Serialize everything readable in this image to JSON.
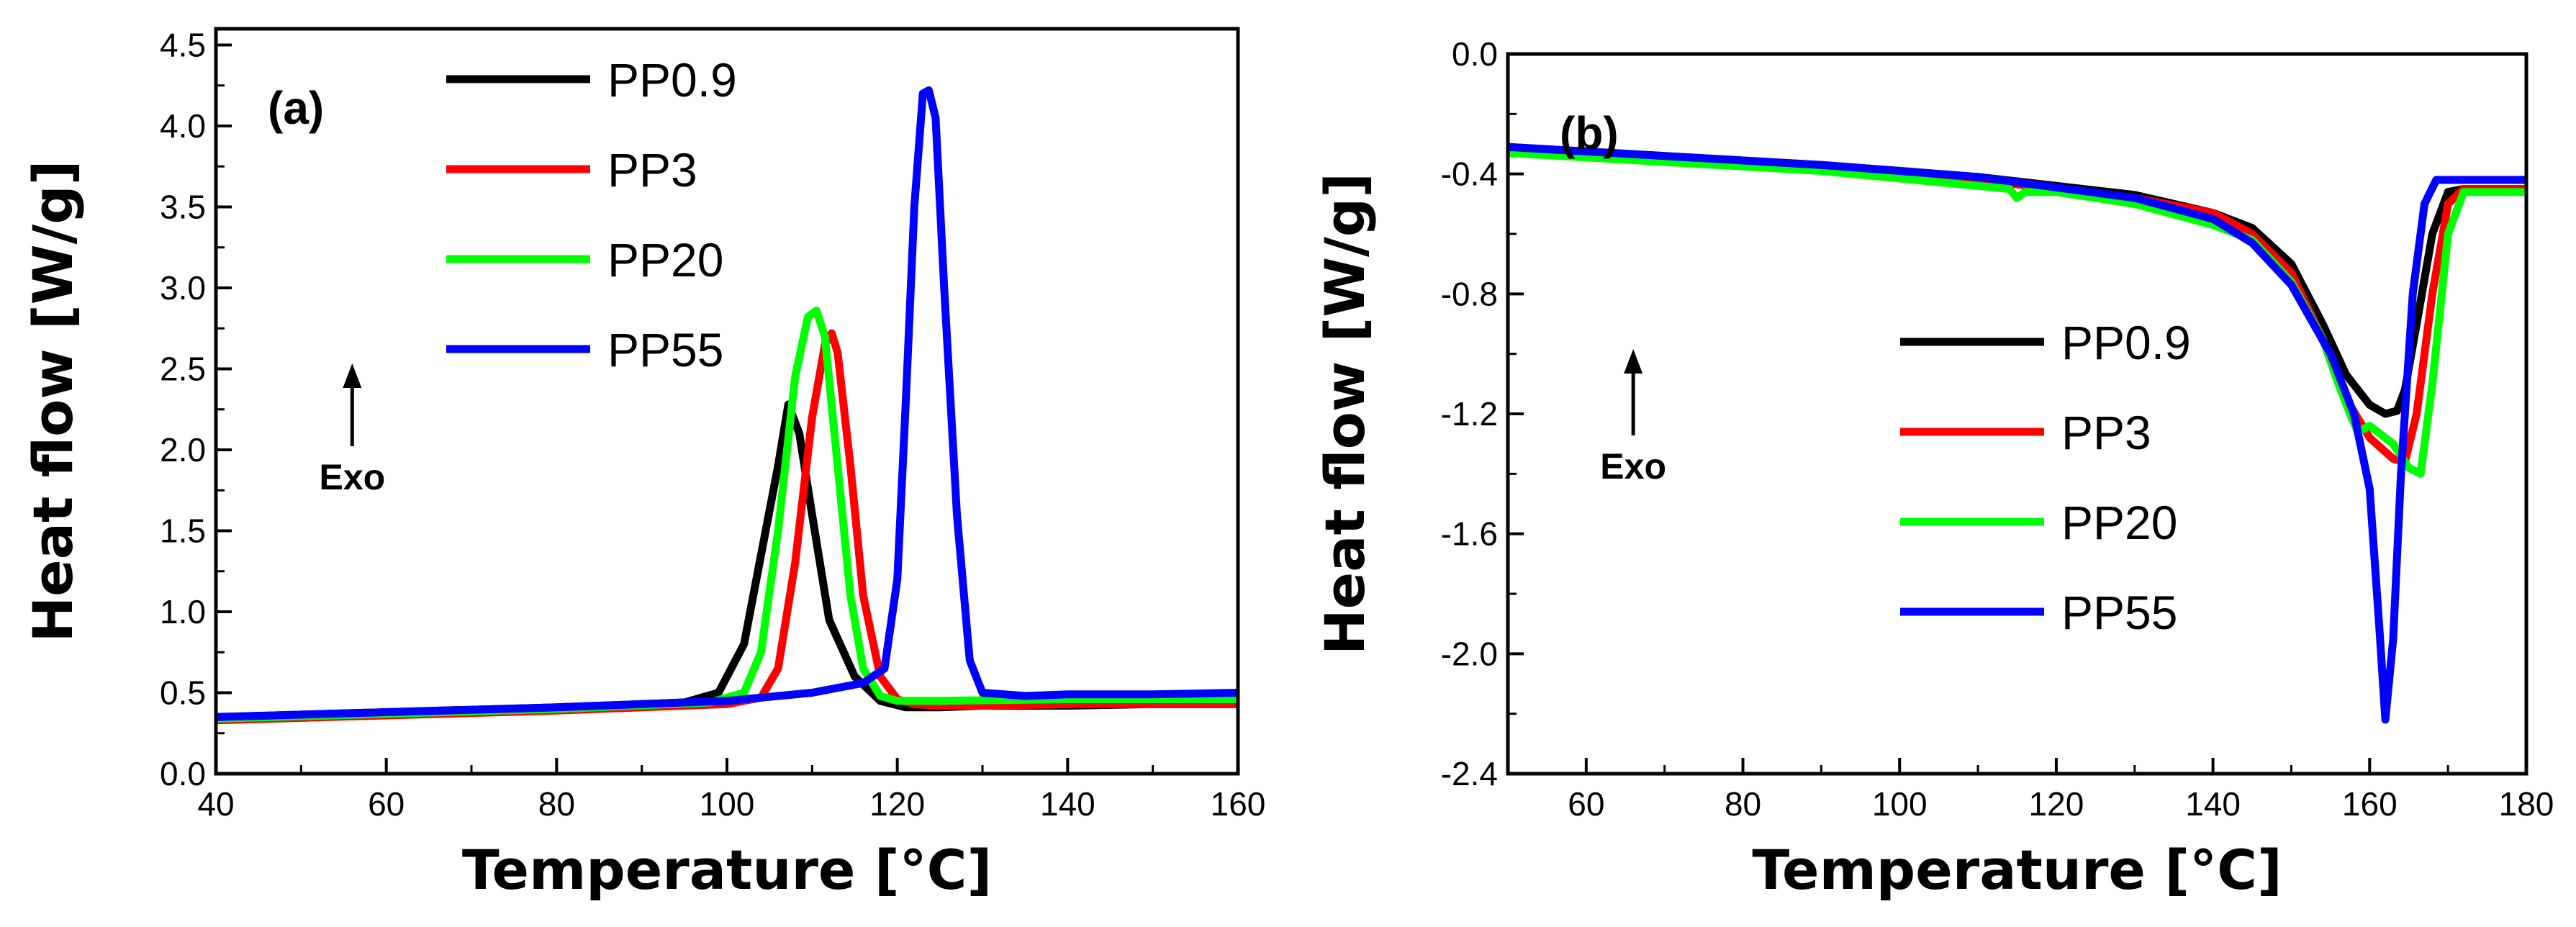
{
  "chart_data": [
    {
      "type": "line",
      "panel_label": "(a)",
      "xlabel": "Temperature [°C]",
      "ylabel": "Heat flow [W/g]",
      "xlim": [
        40,
        160
      ],
      "ylim": [
        0.0,
        4.6
      ],
      "xticks": [
        40,
        60,
        80,
        100,
        120,
        140,
        160
      ],
      "xtick_labels": [
        "40",
        "60",
        "80",
        "100",
        "120",
        "140",
        "160"
      ],
      "yticks": [
        0.0,
        0.5,
        1.0,
        1.5,
        2.0,
        2.5,
        3.0,
        3.5,
        4.0,
        4.5
      ],
      "ytick_labels": [
        "0.0",
        "0.5",
        "1.0",
        "1.5",
        "2.0",
        "2.5",
        "3.0",
        "3.5",
        "4.0",
        "4.5"
      ],
      "annotation": "Exo",
      "annotation_pos": [
        56,
        2.55
      ],
      "legend_position": "top-center",
      "series": [
        {
          "name": "PP0.9",
          "color": "#000000",
          "x": [
            40,
            60,
            80,
            95,
            99,
            102,
            104,
            106,
            107.2,
            108.5,
            110,
            112,
            115,
            118,
            121,
            125,
            130,
            140,
            150,
            160
          ],
          "y": [
            0.35,
            0.38,
            0.41,
            0.44,
            0.5,
            0.8,
            1.35,
            1.9,
            2.28,
            2.1,
            1.6,
            0.95,
            0.6,
            0.45,
            0.41,
            0.41,
            0.42,
            0.42,
            0.43,
            0.43
          ]
        },
        {
          "name": "PP3",
          "color": "#ff0000",
          "x": [
            40,
            60,
            80,
            100,
            104,
            106,
            108,
            110,
            111.5,
            112.3,
            113,
            114.5,
            116,
            118,
            120,
            122,
            125,
            130,
            140,
            150,
            160
          ],
          "y": [
            0.33,
            0.36,
            0.39,
            0.43,
            0.47,
            0.65,
            1.3,
            2.2,
            2.65,
            2.72,
            2.6,
            1.9,
            1.1,
            0.6,
            0.46,
            0.43,
            0.42,
            0.42,
            0.43,
            0.43,
            0.43
          ]
        },
        {
          "name": "PP20",
          "color": "#00ff00",
          "x": [
            40,
            60,
            80,
            98,
            102,
            104,
            106,
            108,
            109.5,
            110.5,
            111.5,
            113,
            114.5,
            116,
            118,
            120,
            125,
            140,
            160
          ],
          "y": [
            0.34,
            0.37,
            0.4,
            0.44,
            0.5,
            0.75,
            1.5,
            2.45,
            2.82,
            2.86,
            2.7,
            1.9,
            1.1,
            0.65,
            0.48,
            0.45,
            0.45,
            0.46,
            0.46
          ]
        },
        {
          "name": "PP55",
          "color": "#0000ff",
          "x": [
            40,
            60,
            80,
            100,
            110,
            116,
            118.5,
            120,
            121,
            122,
            123,
            123.7,
            124.5,
            125.5,
            127,
            128.5,
            130,
            135,
            140,
            150,
            160
          ],
          "y": [
            0.35,
            0.38,
            0.41,
            0.45,
            0.5,
            0.56,
            0.65,
            1.2,
            2.3,
            3.5,
            4.2,
            4.22,
            4.05,
            3.0,
            1.6,
            0.7,
            0.5,
            0.48,
            0.49,
            0.49,
            0.5
          ]
        }
      ]
    },
    {
      "type": "line",
      "panel_label": "(b)",
      "xlabel": "Temperature [°C]",
      "ylabel": "Heat flow [W/g]",
      "xlim": [
        50,
        180
      ],
      "ylim": [
        -2.4,
        0.0
      ],
      "xticks": [
        60,
        80,
        100,
        120,
        140,
        160,
        180
      ],
      "xtick_labels": [
        "60",
        "80",
        "100",
        "120",
        "140",
        "160",
        "180"
      ],
      "yticks": [
        0.0,
        -0.4,
        -0.8,
        -1.2,
        -1.6,
        -2.0,
        -2.4
      ],
      "ytick_labels": [
        "0.0",
        "-0.4",
        "-0.8",
        "-1.2",
        "-1.6",
        "-2.0",
        "-2.4"
      ],
      "annotation": "Exo",
      "annotation_pos": [
        66,
        -1.1
      ],
      "legend_position": "center-right",
      "series": [
        {
          "name": "PP0.9",
          "color": "#000000",
          "x": [
            50,
            70,
            90,
            110,
            130,
            140,
            145,
            150,
            154,
            157,
            160,
            162,
            163.5,
            164.5,
            166,
            168,
            170,
            172,
            176,
            180
          ],
          "y": [
            -0.31,
            -0.34,
            -0.37,
            -0.41,
            -0.47,
            -0.53,
            -0.58,
            -0.7,
            -0.9,
            -1.07,
            -1.17,
            -1.2,
            -1.19,
            -1.12,
            -0.9,
            -0.6,
            -0.46,
            -0.45,
            -0.45,
            -0.45
          ]
        },
        {
          "name": "PP3",
          "color": "#ff0000",
          "x": [
            50,
            70,
            90,
            110,
            130,
            140,
            145,
            150,
            154,
            157,
            160,
            163,
            164.5,
            166,
            168,
            170,
            172,
            176,
            180
          ],
          "y": [
            -0.32,
            -0.35,
            -0.38,
            -0.42,
            -0.48,
            -0.53,
            -0.6,
            -0.73,
            -0.95,
            -1.15,
            -1.28,
            -1.35,
            -1.36,
            -1.2,
            -0.8,
            -0.5,
            -0.45,
            -0.45,
            -0.45
          ]
        },
        {
          "name": "PP20",
          "color": "#00ff00",
          "x": [
            50,
            70,
            90,
            110,
            114,
            115,
            116,
            120,
            130,
            140,
            143,
            145,
            150,
            154,
            156,
            157.5,
            158.5,
            160,
            163,
            165,
            166.5,
            168,
            170,
            172,
            176,
            180
          ],
          "y": [
            -0.33,
            -0.36,
            -0.39,
            -0.44,
            -0.45,
            -0.48,
            -0.46,
            -0.46,
            -0.5,
            -0.57,
            -0.6,
            -0.62,
            -0.76,
            -0.95,
            -1.1,
            -1.2,
            -1.26,
            -1.24,
            -1.3,
            -1.38,
            -1.4,
            -1.1,
            -0.6,
            -0.46,
            -0.46,
            -0.46
          ]
        },
        {
          "name": "PP55",
          "color": "#0000ff",
          "x": [
            50,
            70,
            90,
            110,
            130,
            140,
            145,
            150,
            155,
            158,
            160,
            161.2,
            162,
            163,
            164,
            165.5,
            167,
            168.5,
            172,
            176,
            180
          ],
          "y": [
            -0.31,
            -0.34,
            -0.37,
            -0.41,
            -0.48,
            -0.55,
            -0.63,
            -0.77,
            -1.0,
            -1.2,
            -1.45,
            -1.9,
            -2.22,
            -1.95,
            -1.4,
            -0.8,
            -0.5,
            -0.42,
            -0.42,
            -0.42,
            -0.42
          ]
        }
      ]
    }
  ]
}
